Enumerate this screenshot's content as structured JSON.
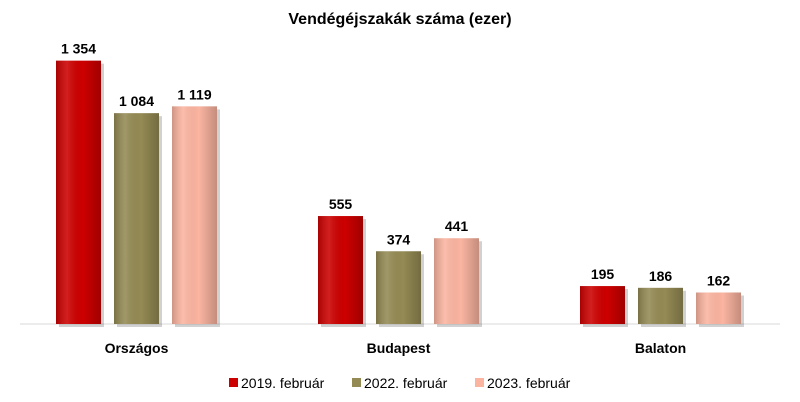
{
  "chart_data": {
    "type": "bar",
    "title": "Vendégéjszakák száma (ezer)",
    "categories": [
      "Országos",
      "Budapest",
      "Balaton"
    ],
    "series": [
      {
        "name": "2019. február",
        "color": "#cc0000",
        "values": [
          1354,
          555,
          195
        ],
        "labels": [
          "1 354",
          "555",
          "195"
        ]
      },
      {
        "name": "2022. február",
        "color": "#948a54",
        "values": [
          1084,
          374,
          186
        ],
        "labels": [
          "1 084",
          "374",
          "186"
        ]
      },
      {
        "name": "2023. február",
        "color": "#fbb4a0",
        "values": [
          1119,
          441,
          162
        ],
        "labels": [
          "1 119",
          "441",
          "162"
        ]
      }
    ],
    "ylim": [
      0,
      1400
    ],
    "grid": false,
    "legend_position": "bottom"
  }
}
